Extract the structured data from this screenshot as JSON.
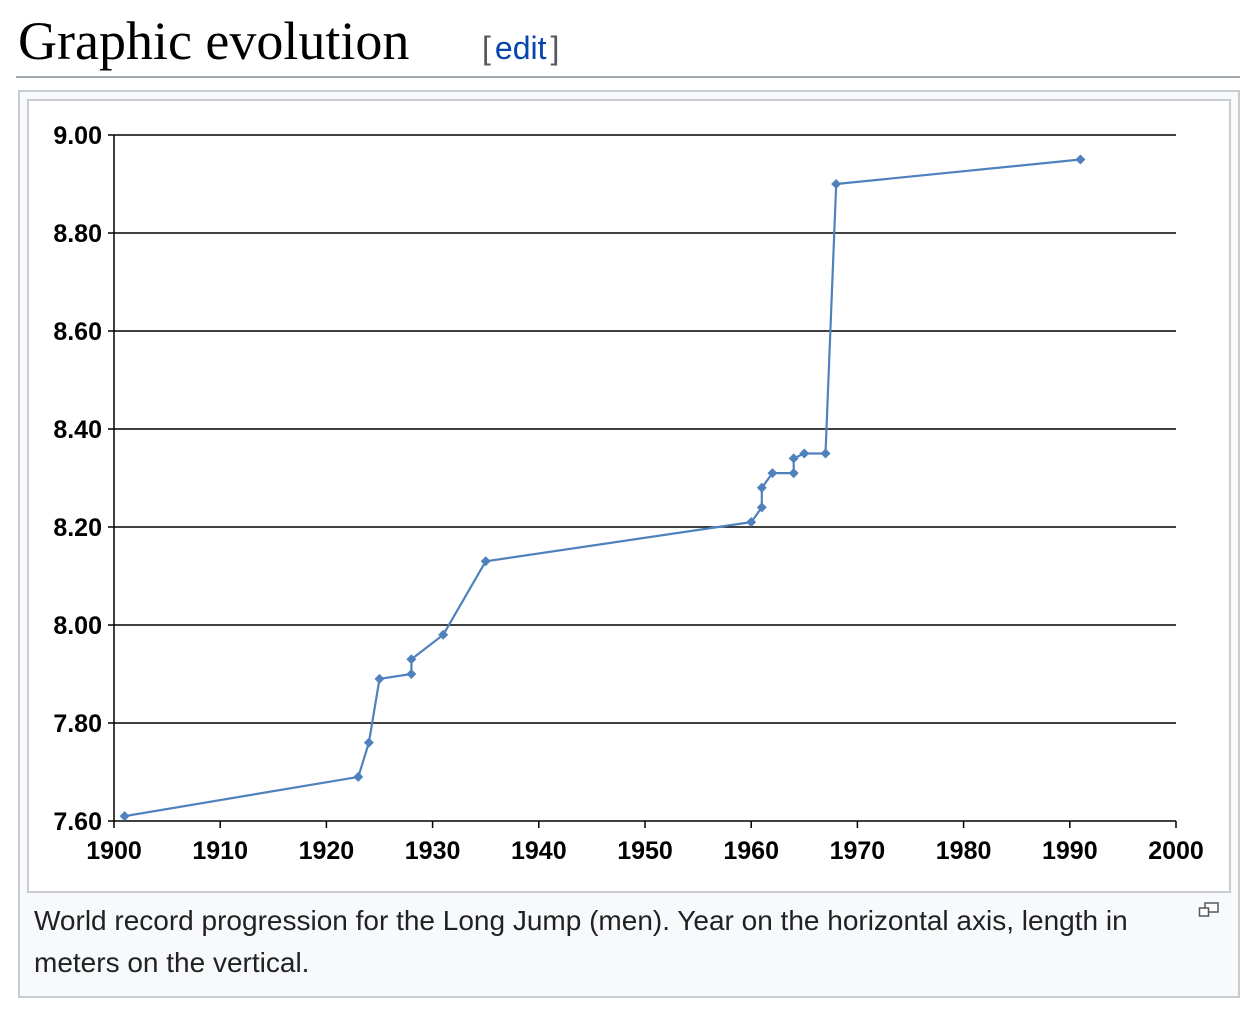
{
  "heading": {
    "title": "Graphic evolution",
    "edit_open": "[",
    "edit_label": "edit",
    "edit_close": "]"
  },
  "figure": {
    "caption": "World record progression for the Long Jump (men). Year on the horizontal axis, length in meters on the vertical.",
    "enlarge_icon": "magnify-clip-icon"
  },
  "colors": {
    "series": "#4f81bd",
    "grid": "#000000",
    "link": "#0645ad"
  },
  "chart_data": {
    "type": "line",
    "title": "",
    "xlabel": "",
    "ylabel": "",
    "xlim": [
      1900,
      2000
    ],
    "ylim": [
      7.6,
      9.0
    ],
    "x_ticks": [
      "1900",
      "1910",
      "1920",
      "1930",
      "1940",
      "1950",
      "1960",
      "1970",
      "1980",
      "1990",
      "2000"
    ],
    "y_ticks": [
      "7.60",
      "7.80",
      "8.00",
      "8.20",
      "8.40",
      "8.60",
      "8.80",
      "9.00"
    ],
    "grid": "horizontal",
    "legend": "none",
    "marker": "diamond",
    "series": [
      {
        "x": [
          1901,
          1923,
          1924,
          1925,
          1928,
          1928,
          1931,
          1935,
          1960,
          1961,
          1961,
          1962,
          1964,
          1964,
          1965,
          1967,
          1968,
          1991
        ],
        "y": [
          7.61,
          7.69,
          7.76,
          7.89,
          7.9,
          7.93,
          7.98,
          8.13,
          8.21,
          8.24,
          8.28,
          8.31,
          8.31,
          8.34,
          8.35,
          8.35,
          8.9,
          8.95
        ]
      }
    ]
  }
}
